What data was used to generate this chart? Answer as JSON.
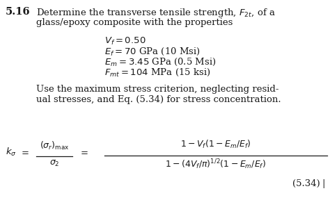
{
  "background_color": "#ffffff",
  "text_color": "#1a1a1a",
  "problem_number": "5.16",
  "title_line1": "Determine the transverse tensile strength, $F_{2t}$, of a",
  "title_line2": "glass/epoxy composite with the properties",
  "prop1": "$V_f = 0.50$",
  "prop2": "$E_f = 70$ GPa (10 Msi)",
  "prop3": "$E_m = 3.45$ GPa (0.5 Msi)",
  "prop4": "$F_{mt} = 104$ MPa (15 ksi)",
  "body1": "Use the maximum stress criterion, neglecting resid-",
  "body2": "ual stresses, and Eq. (5.34) for stress concentration.",
  "eq_num": "(5.34)",
  "ka_lhs": "$k_\\sigma$",
  "eq_equals": "$=$",
  "frac1_num": "$(\\sigma_r)_{\\rm max}$",
  "frac1_den": "$\\sigma_2$",
  "frac2_num": "$1 - V_f(1 - E_m/E_f)$",
  "frac2_den": "$1 - (4V_f/\\pi)^{1/2}(1 - E_m/E_f)$",
  "fig_width": 4.74,
  "fig_height": 3.11,
  "dpi": 100,
  "fs": 9.5,
  "fs_bold": 10.5
}
